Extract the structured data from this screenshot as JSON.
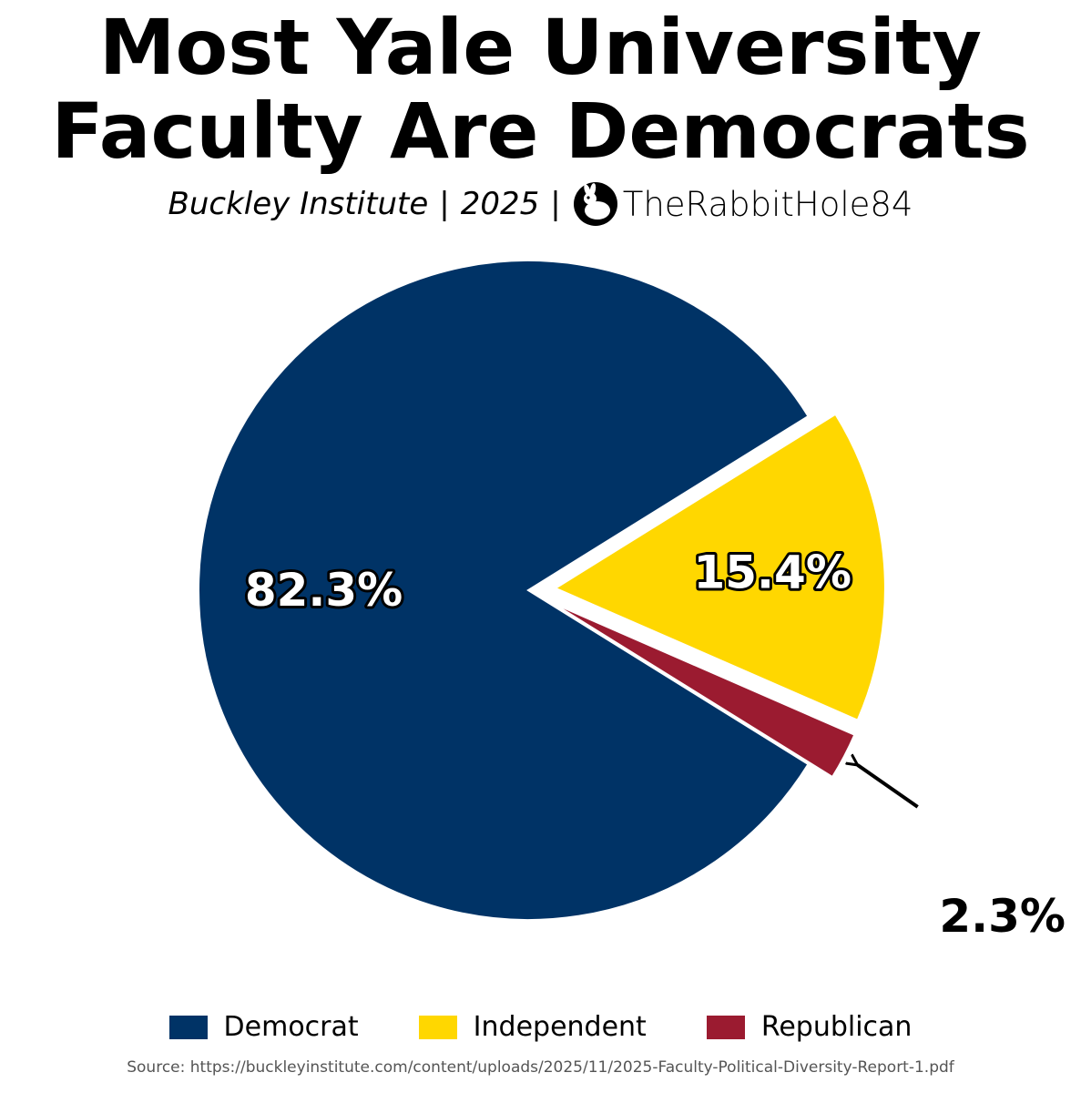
{
  "header": {
    "title_line1": "Most Yale University",
    "title_line2": "Faculty Are Democrats",
    "subtitle_source": "Buckley Institute",
    "subtitle_separator": "|",
    "subtitle_year": "2025",
    "subtitle_handle": "TheRabbitHole84",
    "logo_icon": "rabbit-logo-icon"
  },
  "chart_data": {
    "type": "pie",
    "title": "Most Yale University Faculty Are Democrats",
    "categories": [
      "Democrat",
      "Independent",
      "Republican"
    ],
    "values": [
      82.3,
      15.4,
      2.3
    ],
    "labels": [
      "82.3%",
      "15.4%",
      "2.3%"
    ],
    "colors": [
      "#003366",
      "#FFD700",
      "#9B1B30"
    ],
    "exploded": [
      "Independent",
      "Republican"
    ],
    "legend_position": "bottom"
  },
  "legend": {
    "items": [
      {
        "label": "Democrat",
        "color": "#003366"
      },
      {
        "label": "Independent",
        "color": "#FFD700"
      },
      {
        "label": "Republican",
        "color": "#9B1B30"
      }
    ]
  },
  "footer": {
    "source": "Source: https://buckleyinstitute.com/content/uploads/2025/11/2025-Faculty-Political-Diversity-Report-1.pdf"
  }
}
